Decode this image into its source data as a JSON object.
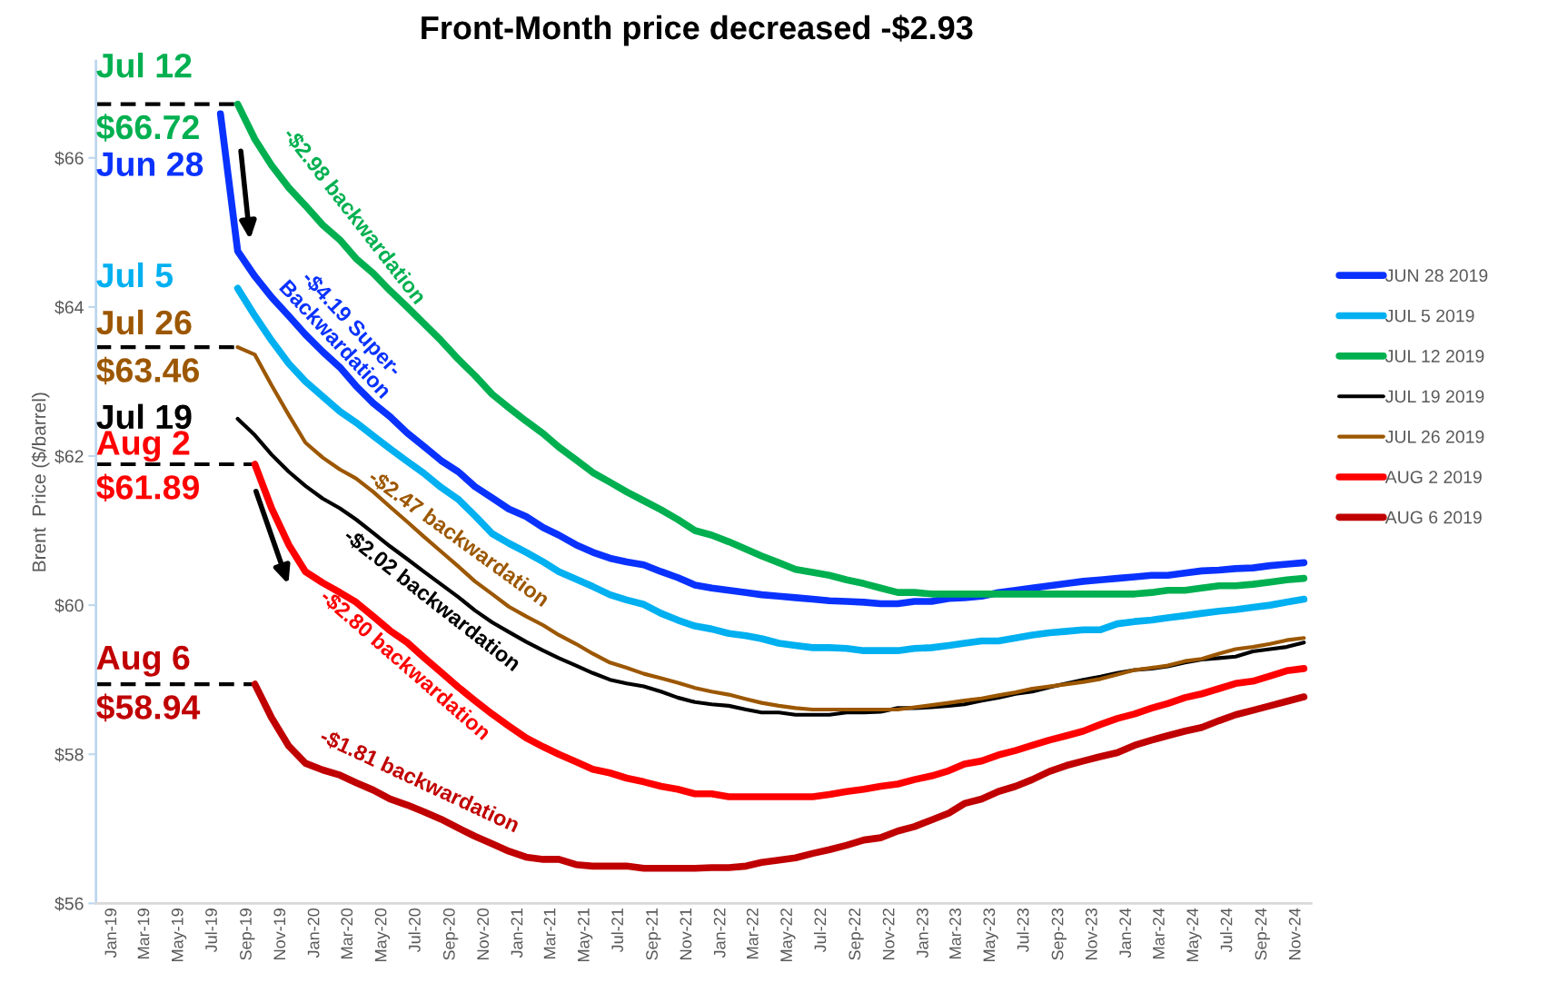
{
  "chart_data": {
    "type": "line",
    "title": "Front-Month price decreased -$2.93",
    "ylabel": "Brent  Price ($/barrel)",
    "x": [
      "2019-07-15",
      "2019-08-15",
      "2019-09-15",
      "2019-10-15",
      "2019-11-15",
      "2019-12-15",
      "2020-01-15",
      "2020-02-15",
      "2020-03-15",
      "2020-04-15",
      "2020-05-15",
      "2020-06-15",
      "2020-07-15",
      "2020-08-15",
      "2020-09-15",
      "2020-10-15",
      "2020-11-15",
      "2020-12-15",
      "2021-01-15",
      "2021-02-15",
      "2021-03-15",
      "2021-04-15",
      "2021-05-15",
      "2021-06-15",
      "2021-07-15",
      "2021-08-15",
      "2021-09-15",
      "2021-10-15",
      "2021-11-15",
      "2021-12-15",
      "2022-01-15",
      "2022-02-15",
      "2022-03-15",
      "2022-04-15",
      "2022-05-15",
      "2022-06-15",
      "2022-07-15",
      "2022-08-15",
      "2022-09-15",
      "2022-10-15",
      "2022-11-15",
      "2022-12-15",
      "2023-01-15",
      "2023-02-15",
      "2023-03-15",
      "2023-04-15",
      "2023-05-15",
      "2023-06-15",
      "2023-07-15",
      "2023-08-15",
      "2023-09-15",
      "2023-10-15",
      "2023-11-15",
      "2023-12-15",
      "2024-01-15",
      "2024-02-15",
      "2024-03-15",
      "2024-04-15",
      "2024-05-15",
      "2024-06-15",
      "2024-07-15",
      "2024-08-15",
      "2024-09-15",
      "2024-10-15",
      "2024-11-15"
    ],
    "series": [
      {
        "name": "JUN 28 2019",
        "color": "#0a32ff",
        "values": [
          66.59,
          64.75,
          64.41,
          64.13,
          63.88,
          63.63,
          63.4,
          63.19,
          62.94,
          62.71,
          62.53,
          62.31,
          62.13,
          61.94,
          61.79,
          61.59,
          61.44,
          61.29,
          61.19,
          61.04,
          60.94,
          60.81,
          60.71,
          60.63,
          60.58,
          60.54,
          60.45,
          60.37,
          60.27,
          60.23,
          60.2,
          60.17,
          60.14,
          60.12,
          60.1,
          60.08,
          60.06,
          60.05,
          60.04,
          60.02,
          60.02,
          60.05,
          60.05,
          60.09,
          60.1,
          60.12,
          60.17,
          60.2,
          60.23,
          60.26,
          60.29,
          60.32,
          60.34,
          60.36,
          60.38,
          60.4,
          60.4,
          60.43,
          60.46,
          60.47,
          60.49,
          60.5,
          60.53,
          60.55,
          60.57
        ]
      },
      {
        "name": "JUL 5 2019",
        "color": "#00b0f0",
        "values": [
          null,
          64.25,
          63.88,
          63.55,
          63.24,
          63.0,
          62.8,
          62.6,
          62.45,
          62.27,
          62.1,
          61.93,
          61.77,
          61.58,
          61.42,
          61.2,
          60.96,
          60.83,
          60.71,
          60.58,
          60.45,
          60.35,
          60.25,
          60.14,
          60.07,
          60.01,
          59.89,
          59.8,
          59.72,
          59.68,
          59.62,
          59.59,
          59.55,
          59.49,
          59.46,
          59.43,
          59.43,
          59.42,
          59.39,
          59.39,
          59.39,
          59.42,
          59.43,
          59.46,
          59.49,
          59.52,
          59.52,
          59.56,
          59.6,
          59.63,
          59.65,
          59.67,
          59.67,
          59.75,
          59.78,
          59.8,
          59.83,
          59.86,
          59.89,
          59.92,
          59.94,
          59.97,
          60.0,
          60.04,
          60.08
        ]
      },
      {
        "name": "JUL 12 2019",
        "color": "#00b050",
        "values": [
          null,
          66.72,
          66.25,
          65.9,
          65.6,
          65.36,
          65.1,
          64.9,
          64.65,
          64.45,
          64.22,
          64.0,
          63.78,
          63.55,
          63.3,
          63.08,
          62.83,
          62.65,
          62.47,
          62.3,
          62.12,
          61.95,
          61.78,
          61.65,
          61.52,
          61.4,
          61.28,
          61.15,
          61.0,
          60.94,
          60.85,
          60.75,
          60.66,
          60.57,
          60.48,
          60.44,
          60.4,
          60.34,
          60.29,
          60.23,
          60.17,
          60.17,
          60.15,
          60.15,
          60.15,
          60.15,
          60.15,
          60.15,
          60.15,
          60.15,
          60.15,
          60.15,
          60.15,
          60.15,
          60.15,
          60.17,
          60.2,
          60.2,
          60.23,
          60.26,
          60.26,
          60.28,
          60.31,
          60.34,
          60.36
        ]
      },
      {
        "name": "JUL 19 2019",
        "color": "#000000",
        "values": [
          null,
          62.5,
          62.28,
          62.02,
          61.79,
          61.6,
          61.43,
          61.3,
          61.15,
          60.97,
          60.79,
          60.62,
          60.45,
          60.28,
          60.11,
          59.93,
          59.77,
          59.64,
          59.51,
          59.39,
          59.29,
          59.19,
          59.09,
          59.0,
          58.95,
          58.91,
          58.84,
          58.76,
          58.7,
          58.67,
          58.65,
          58.6,
          58.56,
          58.56,
          58.53,
          58.53,
          58.53,
          58.56,
          58.56,
          58.57,
          58.62,
          58.62,
          58.63,
          58.65,
          58.67,
          58.72,
          58.76,
          58.81,
          58.84,
          58.9,
          58.95,
          59.0,
          59.04,
          59.09,
          59.13,
          59.15,
          59.18,
          59.23,
          59.27,
          59.29,
          59.31,
          59.38,
          59.41,
          59.44,
          59.5
        ]
      },
      {
        "name": "JUL 26 2019",
        "color": "#9c5700",
        "values": [
          null,
          63.46,
          63.36,
          62.95,
          62.55,
          62.18,
          61.98,
          61.82,
          61.7,
          61.52,
          61.32,
          61.12,
          60.92,
          60.72,
          60.52,
          60.32,
          60.15,
          59.98,
          59.85,
          59.73,
          59.6,
          59.48,
          59.35,
          59.23,
          59.16,
          59.08,
          59.02,
          58.96,
          58.89,
          58.84,
          58.8,
          58.74,
          58.69,
          58.65,
          58.62,
          58.6,
          58.6,
          58.6,
          58.6,
          58.6,
          58.6,
          58.63,
          58.66,
          58.69,
          58.72,
          58.75,
          58.79,
          58.83,
          58.88,
          58.91,
          58.94,
          58.97,
          59.01,
          59.07,
          59.13,
          59.16,
          59.19,
          59.25,
          59.28,
          59.35,
          59.41,
          59.44,
          59.48,
          59.53,
          59.56
        ]
      },
      {
        "name": "AUG 2 2019",
        "color": "#ff0000",
        "values": [
          null,
          null,
          61.89,
          61.3,
          60.81,
          60.45,
          60.3,
          60.17,
          60.04,
          59.85,
          59.66,
          59.5,
          59.3,
          59.1,
          58.9,
          58.72,
          58.54,
          58.38,
          58.22,
          58.1,
          58.0,
          57.9,
          57.8,
          57.75,
          57.68,
          57.63,
          57.57,
          57.53,
          57.47,
          57.47,
          57.43,
          57.43,
          57.43,
          57.43,
          57.43,
          57.43,
          57.46,
          57.5,
          57.53,
          57.57,
          57.6,
          57.66,
          57.71,
          57.78,
          57.87,
          57.91,
          57.99,
          58.05,
          58.12,
          58.19,
          58.25,
          58.31,
          58.4,
          58.48,
          58.54,
          58.62,
          58.68,
          58.76,
          58.81,
          58.88,
          58.95,
          58.98,
          59.05,
          59.12,
          59.15
        ]
      },
      {
        "name": "AUG 6 2019",
        "color": "#c00000",
        "values": [
          null,
          null,
          58.94,
          58.49,
          58.11,
          57.88,
          57.79,
          57.72,
          57.62,
          57.52,
          57.4,
          57.32,
          57.23,
          57.13,
          57.01,
          56.9,
          56.8,
          56.7,
          56.62,
          56.59,
          56.59,
          56.52,
          56.5,
          56.5,
          56.5,
          56.47,
          56.47,
          56.47,
          56.47,
          56.48,
          56.48,
          56.5,
          56.55,
          56.58,
          56.61,
          56.67,
          56.72,
          56.78,
          56.85,
          56.88,
          56.97,
          57.03,
          57.12,
          57.21,
          57.34,
          57.4,
          57.5,
          57.57,
          57.66,
          57.77,
          57.85,
          57.91,
          57.97,
          58.02,
          58.12,
          58.19,
          58.25,
          58.31,
          58.36,
          58.45,
          58.53,
          58.59,
          58.65,
          58.71,
          58.77
        ]
      }
    ],
    "xlim": [
      "2018-12-03",
      "2024-11-28"
    ],
    "xticks": [
      {
        "value": "2019-01-01",
        "label": "Jan-19"
      },
      {
        "value": "2019-03-01",
        "label": "Mar-19"
      },
      {
        "value": "2019-05-01",
        "label": "May-19"
      },
      {
        "value": "2019-07-01",
        "label": "Jul-19"
      },
      {
        "value": "2019-09-01",
        "label": "Sep-19"
      },
      {
        "value": "2019-11-01",
        "label": "Nov-19"
      },
      {
        "value": "2020-01-01",
        "label": "Jan-20"
      },
      {
        "value": "2020-03-01",
        "label": "Mar-20"
      },
      {
        "value": "2020-05-01",
        "label": "May-20"
      },
      {
        "value": "2020-07-01",
        "label": "Jul-20"
      },
      {
        "value": "2020-09-01",
        "label": "Sep-20"
      },
      {
        "value": "2020-11-01",
        "label": "Nov-20"
      },
      {
        "value": "2021-01-01",
        "label": "Jan-21"
      },
      {
        "value": "2021-03-01",
        "label": "Mar-21"
      },
      {
        "value": "2021-05-01",
        "label": "May-21"
      },
      {
        "value": "2021-07-01",
        "label": "Jul-21"
      },
      {
        "value": "2021-09-01",
        "label": "Sep-21"
      },
      {
        "value": "2021-11-01",
        "label": "Nov-21"
      },
      {
        "value": "2022-01-01",
        "label": "Jan-22"
      },
      {
        "value": "2022-03-01",
        "label": "Mar-22"
      },
      {
        "value": "2022-05-01",
        "label": "May-22"
      },
      {
        "value": "2022-07-01",
        "label": "Jul-22"
      },
      {
        "value": "2022-09-01",
        "label": "Sep-22"
      },
      {
        "value": "2022-11-01",
        "label": "Nov-22"
      },
      {
        "value": "2023-01-01",
        "label": "Jan-23"
      },
      {
        "value": "2023-03-01",
        "label": "Mar-23"
      },
      {
        "value": "2023-05-01",
        "label": "May-23"
      },
      {
        "value": "2023-07-01",
        "label": "Jul-23"
      },
      {
        "value": "2023-09-01",
        "label": "Sep-23"
      },
      {
        "value": "2023-11-01",
        "label": "Nov-23"
      },
      {
        "value": "2024-01-01",
        "label": "Jan-24"
      },
      {
        "value": "2024-03-01",
        "label": "Mar-24"
      },
      {
        "value": "2024-05-01",
        "label": "May-24"
      },
      {
        "value": "2024-07-01",
        "label": "Jul-24"
      },
      {
        "value": "2024-09-01",
        "label": "Sep-24"
      },
      {
        "value": "2024-11-01",
        "label": "Nov-24"
      }
    ],
    "ylim": [
      56,
      67.3
    ],
    "yticks": [
      {
        "value": 56,
        "label": "$56"
      },
      {
        "value": 58,
        "label": "$58"
      },
      {
        "value": 60,
        "label": "$60"
      },
      {
        "value": 62,
        "label": "$62"
      },
      {
        "value": 64,
        "label": "$64"
      },
      {
        "value": 66,
        "label": "$66"
      }
    ],
    "grid": false,
    "legend": "right",
    "marker": "none",
    "line_style": "solid",
    "ref_lines": [
      {
        "axis": "y",
        "value": 66.72,
        "label": "$66.72",
        "color": "#000000",
        "line_style": "dashed"
      },
      {
        "axis": "y",
        "value": 63.46,
        "label": "$63.46",
        "color": "#000000",
        "line_style": "dashed"
      },
      {
        "axis": "y",
        "value": 61.89,
        "label": "$61.89",
        "color": "#000000",
        "line_style": "dashed"
      },
      {
        "axis": "y",
        "value": 58.94,
        "label": "$58.94",
        "color": "#000000",
        "line_style": "dashed"
      }
    ],
    "annotations": [
      "Jul 12",
      "Jun 28",
      "Jul 5",
      "Jul 26",
      "Jul 19",
      "Aug 2",
      "Aug 6",
      "-$2.98 backwardation",
      "-$4.19 Super-\nBackwardation",
      "-$2.47 backwardation",
      "-$2.02 backwardation",
      "-$2.80 backwardation",
      "-$1.81 backwardation"
    ]
  }
}
